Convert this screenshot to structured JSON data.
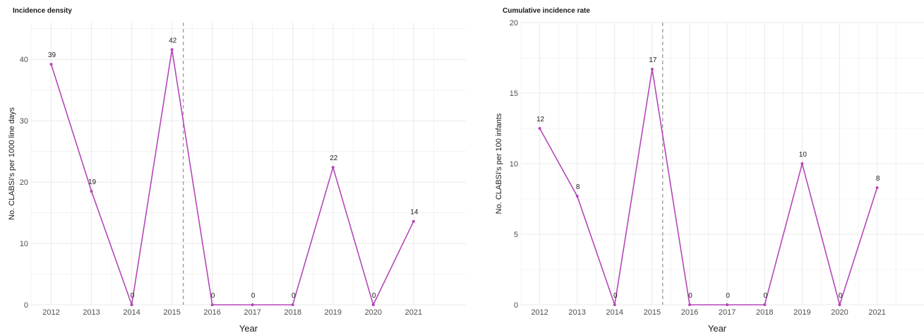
{
  "colors": {
    "line": "#b547b8",
    "grid": "#ebebeb",
    "vline": "#999999"
  },
  "chart_data": [
    {
      "type": "line",
      "title": "Incidence density",
      "xlabel": "Year",
      "ylabel": "No. CLABSI's per 1000 line days",
      "x": [
        "2012",
        "2013",
        "2014",
        "2015",
        "2016",
        "2017",
        "2018",
        "2019",
        "2020",
        "2021"
      ],
      "series": [
        {
          "values": [
            39.2,
            18.5,
            0,
            41.6,
            0,
            0,
            0,
            22.4,
            0,
            13.6
          ],
          "labels": [
            "39",
            "19",
            "0",
            "42",
            "0",
            "0",
            "0",
            "22",
            "0",
            "14"
          ]
        }
      ],
      "ylim": [
        0,
        46
      ],
      "yticks": [
        0,
        10,
        20,
        30,
        40
      ],
      "vline_x": 2015.28,
      "grid": true
    },
    {
      "type": "line",
      "title": "Cumulative incidence rate",
      "xlabel": "Year",
      "ylabel": "No. CLABSI's per 100 infants",
      "x": [
        "2012",
        "2013",
        "2014",
        "2015",
        "2016",
        "2017",
        "2018",
        "2019",
        "2020",
        "2021"
      ],
      "series": [
        {
          "values": [
            12.5,
            7.7,
            0,
            16.7,
            0,
            0,
            0,
            10,
            0,
            8.3
          ],
          "labels": [
            "12",
            "8",
            "0",
            "17",
            "0",
            "0",
            "0",
            "10",
            "0",
            "8"
          ]
        }
      ],
      "ylim": [
        0,
        20
      ],
      "yticks": [
        0,
        5,
        10,
        15,
        20
      ],
      "vline_x": 2015.28,
      "grid": true
    }
  ]
}
